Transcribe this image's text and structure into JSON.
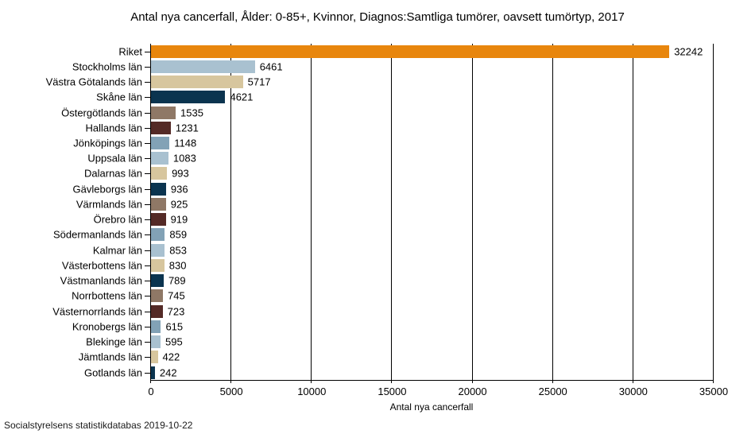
{
  "footer": "Socialstyrelsens statistikdatabas 2019-10-22",
  "chart_data": {
    "type": "bar",
    "orientation": "horizontal",
    "title": "Antal nya cancerfall, Ålder: 0-85+, Kvinnor, Diagnos:Samtliga tumörer, oavsett tumörtyp, 2017",
    "xlabel": "Antal nya cancerfall",
    "ylabel": "",
    "xlim": [
      0,
      35000
    ],
    "xticks": [
      0,
      5000,
      10000,
      15000,
      20000,
      25000,
      30000,
      35000
    ],
    "grid": true,
    "legend": false,
    "value_labels": true,
    "categories": [
      "Riket",
      "Stockholms län",
      "Västra Götalands län",
      "Skåne län",
      "Östergötlands län",
      "Hallands län",
      "Jönköpings län",
      "Uppsala län",
      "Dalarnas län",
      "Gävleborgs län",
      "Värmlands län",
      "Örebro län",
      "Södermanlands län",
      "Kalmar län",
      "Västerbottens län",
      "Västmanlands län",
      "Norrbottens län",
      "Västernorrlands län",
      "Kronobergs län",
      "Blekinge län",
      "Jämtlands län",
      "Gotlands län"
    ],
    "values": [
      32242,
      6461,
      5717,
      4621,
      1535,
      1231,
      1148,
      1083,
      993,
      936,
      925,
      919,
      859,
      853,
      830,
      789,
      745,
      723,
      615,
      595,
      422,
      242
    ],
    "bar_colors": [
      "#e8860d",
      "#a9c1d0",
      "#d7c69e",
      "#0b344f",
      "#8f7866",
      "#542a26",
      "#82a2b6",
      "#a9c1d0",
      "#d7c69e",
      "#0b344f",
      "#8f7866",
      "#542a26",
      "#82a2b6",
      "#a9c1d0",
      "#d7c69e",
      "#0b344f",
      "#8f7866",
      "#542a26",
      "#82a2b6",
      "#a9c1d0",
      "#d7c69e",
      "#0b344f"
    ],
    "palette": {
      "highlight_orange": "#e8860d",
      "light_blue": "#a9c1d0",
      "tan": "#d7c69e",
      "dark_navy": "#0b344f",
      "brown": "#8f7866",
      "maroon": "#542a26",
      "steel_blue": "#82a2b6"
    },
    "axis_color": "#000000",
    "gridline_color": "#000000",
    "text_color": "#000000"
  }
}
